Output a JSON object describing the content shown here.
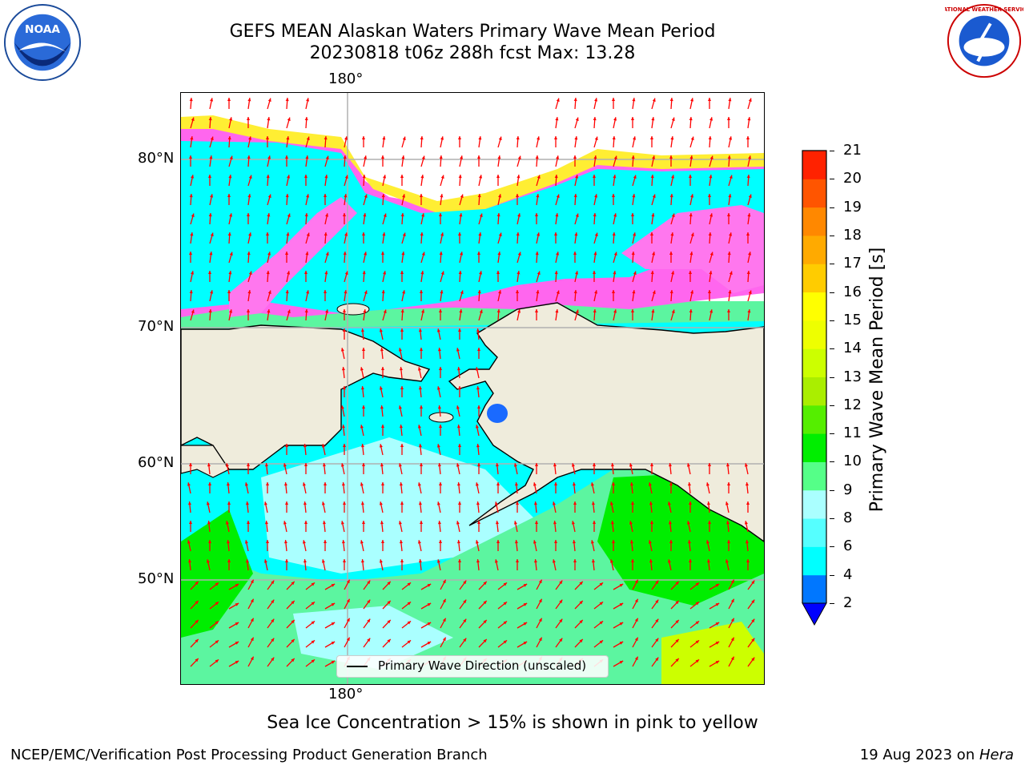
{
  "header": {
    "title_line1": "GEFS MEAN Alaskan Waters Primary Wave Mean Period",
    "title_line2": "20230818 t06z 288h fcst   Max: 13.28"
  },
  "map": {
    "lon_label_top": "180°",
    "lon_label_bottom": "180°",
    "lat_labels": [
      "80°N",
      "70°N",
      "60°N",
      "50°N"
    ],
    "legend_label": "Primary Wave Direction (unscaled)",
    "arrow_color": "#ff0000",
    "land_color": "#efecdc"
  },
  "colorbar": {
    "label": "Primary Wave Mean Period [s]",
    "ticks": [
      "2",
      "4",
      "6",
      "8",
      "9",
      "10",
      "11",
      "12",
      "13",
      "14",
      "15",
      "16",
      "17",
      "18",
      "19",
      "20",
      "21"
    ],
    "colors": [
      "#0077ff",
      "#00ffff",
      "#55ffff",
      "#aaffff",
      "#55ff88",
      "#00ee00",
      "#55ee00",
      "#aaee00",
      "#ccff00",
      "#eeff00",
      "#ffff00",
      "#ffcc00",
      "#ffaa00",
      "#ff8800",
      "#ff5500",
      "#ff2200"
    ],
    "under_color": "#0000ff"
  },
  "note": "Sea Ice Concentration > 15% is shown in pink to yellow",
  "footer": {
    "left": "NCEP/EMC/Verification Post Processing Product Generation Branch",
    "right_date": "19 Aug 2023 on ",
    "right_host": "Hera"
  },
  "logos": {
    "noaa_text": "NOAA",
    "nws_text": "NATIONAL WEATHER SERVICE"
  }
}
